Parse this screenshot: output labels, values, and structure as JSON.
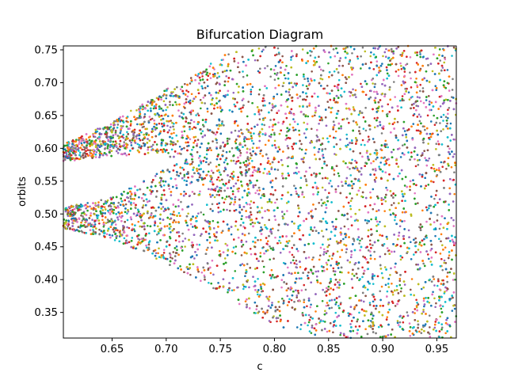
{
  "chart_data": {
    "type": "scatter",
    "title": "Bifurcation Diagram",
    "xlabel": "c",
    "ylabel": "orbits",
    "xlim": [
      0.605,
      0.968
    ],
    "ylim": [
      0.311,
      0.756
    ],
    "x_ticks": [
      0.65,
      0.7,
      0.75,
      0.8,
      0.85,
      0.9,
      0.95
    ],
    "x_tick_labels": [
      "0.65",
      "0.70",
      "0.75",
      "0.80",
      "0.85",
      "0.90",
      "0.95"
    ],
    "y_ticks": [
      0.35,
      0.4,
      0.45,
      0.5,
      0.55,
      0.6,
      0.65,
      0.7,
      0.75
    ],
    "y_tick_labels": [
      "0.35",
      "0.40",
      "0.45",
      "0.50",
      "0.55",
      "0.60",
      "0.65",
      "0.70",
      "0.75"
    ],
    "grid": false,
    "legend": false,
    "upper_branch_envelope": [
      {
        "c": 0.605,
        "low": 0.58,
        "high": 0.606
      },
      {
        "c": 0.65,
        "low": 0.588,
        "high": 0.64
      },
      {
        "c": 0.7,
        "low": 0.592,
        "high": 0.69
      },
      {
        "c": 0.72,
        "low": 0.56,
        "high": 0.705
      },
      {
        "c": 0.75,
        "low": 0.52,
        "high": 0.74
      },
      {
        "c": 0.78,
        "low": 0.48,
        "high": 0.756
      }
    ],
    "lower_branch_envelope": [
      {
        "c": 0.605,
        "low": 0.478,
        "high": 0.51
      },
      {
        "c": 0.65,
        "low": 0.462,
        "high": 0.525
      },
      {
        "c": 0.7,
        "low": 0.425,
        "high": 0.57
      },
      {
        "c": 0.75,
        "low": 0.38,
        "high": 0.61
      },
      {
        "c": 0.8,
        "low": 0.33,
        "high": 0.68
      },
      {
        "c": 0.85,
        "low": 0.311,
        "high": 0.756
      }
    ],
    "colors": [
      "#1f77b4",
      "#ff7f0e",
      "#2ca02c",
      "#d62728",
      "#9467bd",
      "#8c564b",
      "#e377c2",
      "#7f7f7f",
      "#bcbd22",
      "#17becf"
    ]
  }
}
